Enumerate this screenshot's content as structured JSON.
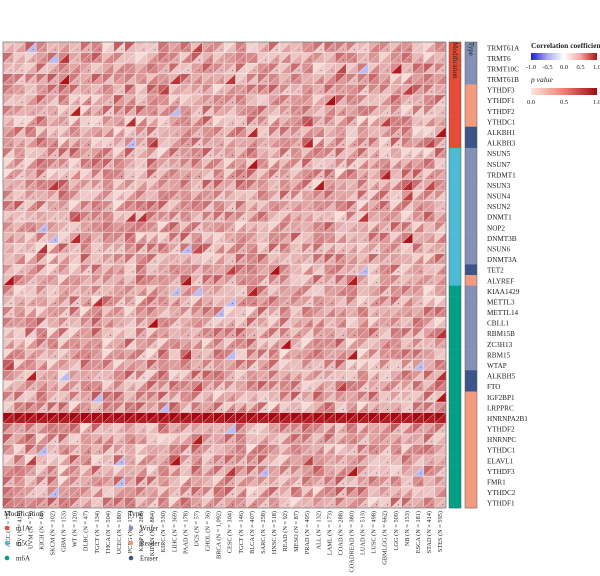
{
  "chart_data": {
    "type": "heatmap",
    "cancers": [
      "ACC (N = 77)",
      "OV (N = 419)",
      "UVM (N = 79)",
      "KICH (N = 66)",
      "SKCM (N = 102)",
      "GBM (N = 153)",
      "WT (N = 120)",
      "DLBC (N = 47)",
      "TGCT (N = 134)",
      "THCA (N = 504)",
      "UCEC (N = 180)",
      "PCPG (N = 177)",
      "KIRP (N = 288)",
      "KIPAN (N = 884)",
      "KIRC (N = 530)",
      "LIHC (N = 369)",
      "PAAD (N = 178)",
      "UCS (N = 57)",
      "CHOL (N = 36)",
      "BRCA (N = 1,092)",
      "CESC (N = 304)",
      "TGCT (N = 146)",
      "BLCA (N = 407)",
      "SARC (N = 258)",
      "HNSC (N = 518)",
      "READ (N = 92)",
      "MESO (N = 87)",
      "PRAD (N = 495)",
      "ALL (N = 132)",
      "LAML (N = 173)",
      "COAD (N = 288)",
      "COADREAD (N = 380)",
      "LUAD (N = 513)",
      "LUSC (N = 498)",
      "GBMLGG (N = 662)",
      "LGG (N = 509)",
      "NB (N = 153)",
      "ESCA (N = 181)",
      "STAD (N = 414)",
      "STES (N = 595)"
    ],
    "genes": [
      "TRMT61A",
      "TRMT6",
      "TRMT10C",
      "TRMT61B",
      "YTHDF3",
      "YTHDF1",
      "YTHDF2",
      "YTHDC1",
      "ALKBH1",
      "ALKBH3",
      "NSUN5",
      "NSUN7",
      "TRDMT1",
      "NSUN3",
      "NSUN4",
      "NSUN2",
      "DNMT1",
      "NOP2",
      "DNMT3B",
      "NSUN6",
      "DNMT3A",
      "TET2",
      "ALYREF",
      "KIAA1429",
      "METTL3",
      "METTL14",
      "CBLL1",
      "RBM15B",
      "ZC3H13",
      "RBM15",
      "WTAP",
      "ALKBH5",
      "FTO",
      "IGF2BP1",
      "LRPPRC",
      "HNRNPA2B1",
      "YTHDF2",
      "HNRNPC",
      "YTHDC1",
      "ELAVL1",
      "YTHDF3",
      "FMR1",
      "YTHDC2",
      "YTHDF1"
    ],
    "modification": [
      "m1A",
      "m1A",
      "m1A",
      "m1A",
      "m1A",
      "m1A",
      "m1A",
      "m1A",
      "m1A",
      "m1A",
      "m5C",
      "m5C",
      "m5C",
      "m5C",
      "m5C",
      "m5C",
      "m5C",
      "m5C",
      "m5C",
      "m5C",
      "m5C",
      "m5C",
      "m5C",
      "m6A",
      "m6A",
      "m6A",
      "m6A",
      "m6A",
      "m6A",
      "m6A",
      "m6A",
      "m6A",
      "m6A",
      "m6A",
      "m6A",
      "m6A",
      "m6A",
      "m6A",
      "m6A",
      "m6A",
      "m6A",
      "m6A",
      "m6A",
      "m6A"
    ],
    "type_per_gene": [
      "Writer",
      "Writer",
      "Writer",
      "Writer",
      "Reader",
      "Reader",
      "Reader",
      "Reader",
      "Eraser",
      "Eraser",
      "Writer",
      "Writer",
      "Writer",
      "Writer",
      "Writer",
      "Writer",
      "Writer",
      "Writer",
      "Writer",
      "Writer",
      "Writer",
      "Eraser",
      "Reader",
      "Writer",
      "Writer",
      "Writer",
      "Writer",
      "Writer",
      "Writer",
      "Writer",
      "Writer",
      "Eraser",
      "Eraser",
      "Reader",
      "Reader",
      "Reader",
      "Reader",
      "Reader",
      "Reader",
      "Reader",
      "Reader",
      "Reader",
      "Reader",
      "Reader"
    ],
    "strong_row": "HNRNPA2B1",
    "column_headers": {
      "modification": "Modification",
      "type": "Type"
    },
    "legend": {
      "correlation": {
        "title": "Correlation coefficient",
        "ticks": [
          "-1.0",
          "-0.5",
          "0.0",
          "0.5",
          "1.0"
        ],
        "range": [
          -1,
          1
        ]
      },
      "pvalue": {
        "title": "p value",
        "ticks": [
          "0.0",
          "0.5",
          "1.0"
        ],
        "range": [
          0,
          1
        ]
      },
      "modification": {
        "title": "Modification",
        "items": [
          {
            "label": "m1A",
            "color": "#e64b35"
          },
          {
            "label": "m5C",
            "color": "#4dbbd5"
          },
          {
            "label": "m6A",
            "color": "#00a087"
          }
        ]
      },
      "type": {
        "title": "Type",
        "items": [
          {
            "label": "Writer",
            "color": "#8491b4"
          },
          {
            "label": "Reader",
            "color": "#f39b7f"
          },
          {
            "label": "Eraser",
            "color": "#3c5488"
          }
        ]
      }
    },
    "grid": false
  }
}
